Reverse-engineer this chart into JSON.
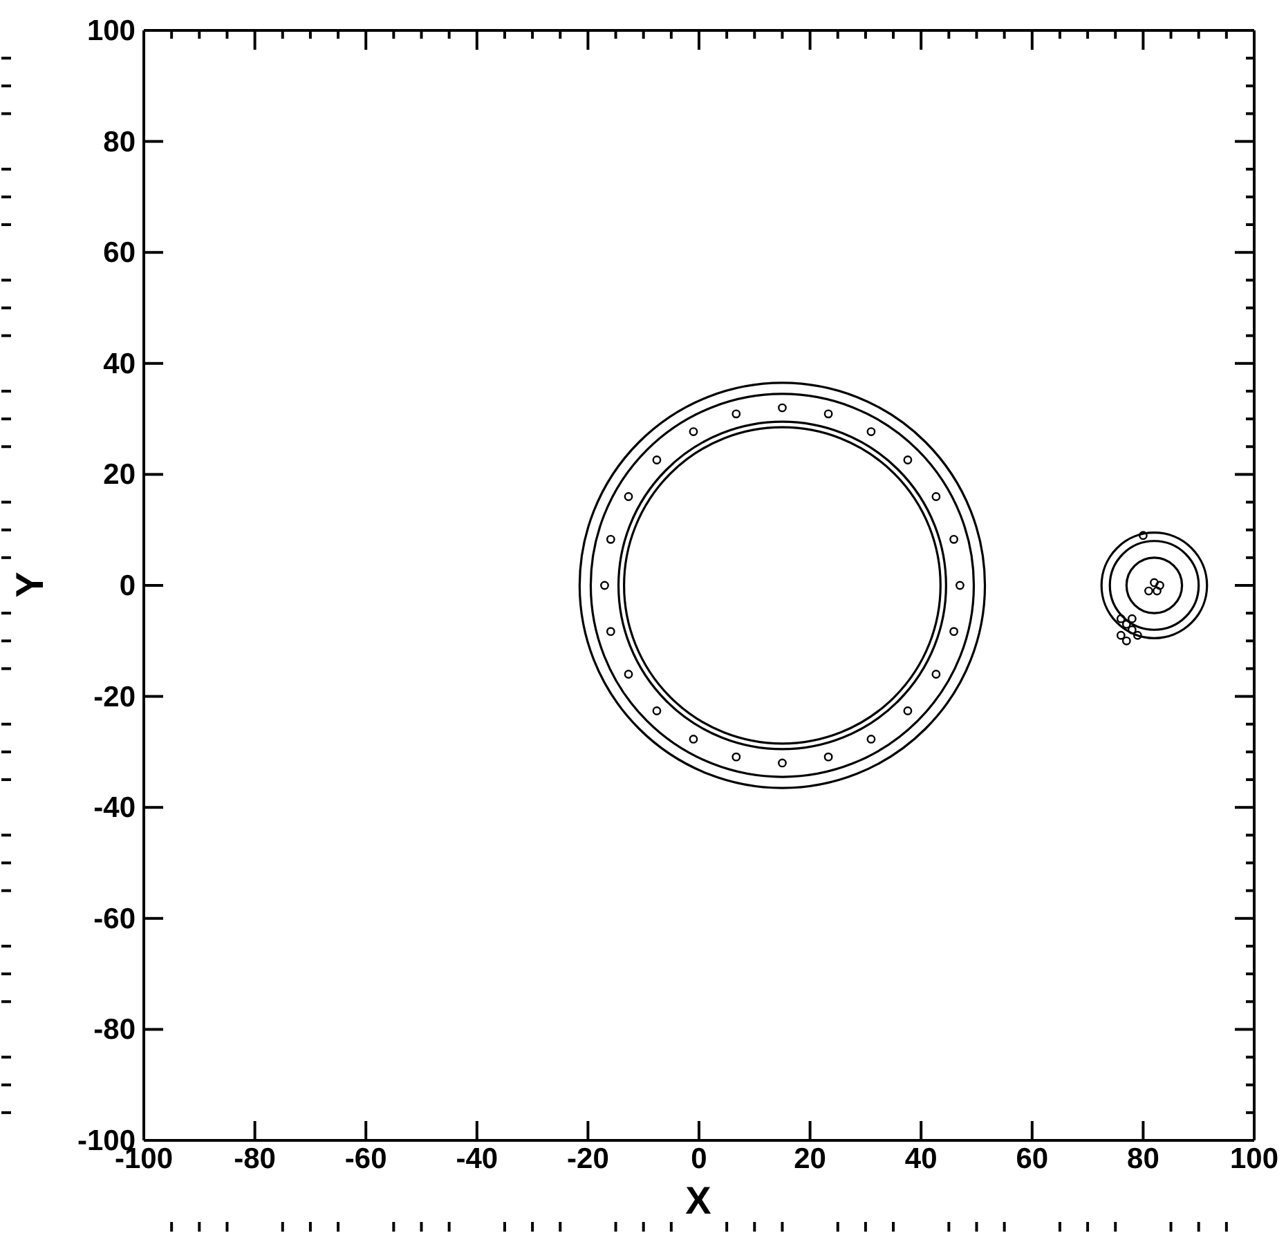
{
  "chart_data": {
    "type": "scatter",
    "marker": "circle",
    "xlabel": "X",
    "ylabel": "Y",
    "xlim": [
      -100,
      100
    ],
    "ylim": [
      -100,
      100
    ],
    "xticks": [
      -100,
      {
        "value": -95,
        "label": null
      },
      {
        "value": -90,
        "label": null
      },
      {
        "value": -85,
        "label": null
      },
      -80,
      {
        "value": -75,
        "label": null
      },
      {
        "value": -70,
        "label": null
      },
      {
        "value": -65,
        "label": null
      },
      -60,
      {
        "value": -55,
        "label": null
      },
      {
        "value": -50,
        "label": null
      },
      {
        "value": -45,
        "label": null
      },
      -40,
      {
        "value": -35,
        "label": null
      },
      {
        "value": -30,
        "label": null
      },
      {
        "value": -25,
        "label": null
      },
      -20,
      {
        "value": -15,
        "label": null
      },
      {
        "value": -10,
        "label": null
      },
      {
        "value": -5,
        "label": null
      },
      0,
      {
        "value": 5,
        "label": null
      },
      {
        "value": 10,
        "label": null
      },
      {
        "value": 15,
        "label": null
      },
      20,
      {
        "value": 25,
        "label": null
      },
      {
        "value": 30,
        "label": null
      },
      {
        "value": 35,
        "label": null
      },
      40,
      {
        "value": 45,
        "label": null
      },
      {
        "value": 50,
        "label": null
      },
      {
        "value": 55,
        "label": null
      },
      60,
      {
        "value": 65,
        "label": null
      },
      {
        "value": 70,
        "label": null
      },
      {
        "value": 75,
        "label": null
      },
      80,
      {
        "value": 85,
        "label": null
      },
      {
        "value": 90,
        "label": null
      },
      {
        "value": 95,
        "label": null
      },
      100
    ],
    "yticks": [
      -100,
      {
        "value": -95,
        "label": null
      },
      {
        "value": -90,
        "label": null
      },
      {
        "value": -85,
        "label": null
      },
      -80,
      {
        "value": -75,
        "label": null
      },
      {
        "value": -70,
        "label": null
      },
      {
        "value": -65,
        "label": null
      },
      -60,
      {
        "value": -55,
        "label": null
      },
      {
        "value": -50,
        "label": null
      },
      {
        "value": -45,
        "label": null
      },
      -40,
      {
        "value": -35,
        "label": null
      },
      {
        "value": -30,
        "label": null
      },
      {
        "value": -25,
        "label": null
      },
      -20,
      {
        "value": -15,
        "label": null
      },
      {
        "value": -10,
        "label": null
      },
      {
        "value": -5,
        "label": null
      },
      0,
      {
        "value": 5,
        "label": null
      },
      {
        "value": 10,
        "label": null
      },
      {
        "value": 15,
        "label": null
      },
      20,
      {
        "value": 25,
        "label": null
      },
      {
        "value": 30,
        "label": null
      },
      {
        "value": 35,
        "label": null
      },
      40,
      {
        "value": 45,
        "label": null
      },
      {
        "value": 50,
        "label": null
      },
      {
        "value": 55,
        "label": null
      },
      60,
      {
        "value": 65,
        "label": null
      },
      {
        "value": 70,
        "label": null
      },
      {
        "value": 75,
        "label": null
      },
      80,
      {
        "value": 85,
        "label": null
      },
      {
        "value": 90,
        "label": null
      },
      {
        "value": 95,
        "label": null
      },
      100
    ],
    "series": [
      {
        "color": "#000000",
        "x": [
          47,
          45.9,
          42.7,
          37.6,
          31,
          23.3,
          15,
          6.7,
          -1,
          -7.6,
          -12.7,
          -15.9,
          -17,
          -15.9,
          -12.7,
          -7.6,
          -1,
          6.7,
          15,
          23.3,
          31,
          37.6,
          42.7,
          45.9
        ],
        "values": [
          0,
          8.3,
          16,
          22.6,
          27.7,
          30.9,
          32,
          30.9,
          27.7,
          22.6,
          16,
          8.3,
          0,
          -8.3,
          -16,
          -22.6,
          -27.7,
          -30.9,
          -32,
          -30.9,
          -27.7,
          -22.6,
          -16,
          -8.3
        ]
      },
      {
        "color": "#000000",
        "x": [
          82,
          83,
          81,
          82.5,
          77,
          78,
          76,
          77,
          79,
          78,
          76,
          80
        ],
        "values": [
          0.5,
          0,
          -1,
          -1,
          -7,
          -8,
          -9,
          -10,
          -9,
          -6,
          -6,
          9
        ]
      }
    ]
  }
}
